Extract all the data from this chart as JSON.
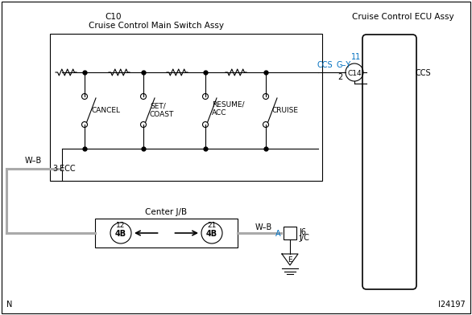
{
  "bg_color": "#ffffff",
  "border_color": "#000000",
  "blue_color": "#0070C0",
  "diagram_id": "I24197",
  "corner_label_N": "N",
  "c10_label": "C10",
  "c10_sublabel": "Cruise Control Main Switch Assy",
  "ecu_label": "Cruise Control ECU Assy",
  "switch_labels": [
    "CANCEL",
    "SET/\nCOAST",
    "RESUME/\nACC",
    "CRUISE"
  ],
  "wb_label1": "W–B",
  "wb_label2": "W–B",
  "ecc_label": "ECC",
  "ecc_pin": "3",
  "ccs_label": "CCS",
  "gy_label": "G–Y",
  "c14_label": "C14",
  "c14_pin_top": "11",
  "c14_pin_bot": "2",
  "ccs_right_label": "CCS",
  "center_jb_label": "Center J/B",
  "pin12_label": "12",
  "pin21_label": "21",
  "pin4b_label": "4B",
  "j6_label": "J6",
  "jc_label": "J/C",
  "j6_pin": "A",
  "ground_label": "E",
  "figw": 5.86,
  "figh": 3.92,
  "dpi": 100
}
